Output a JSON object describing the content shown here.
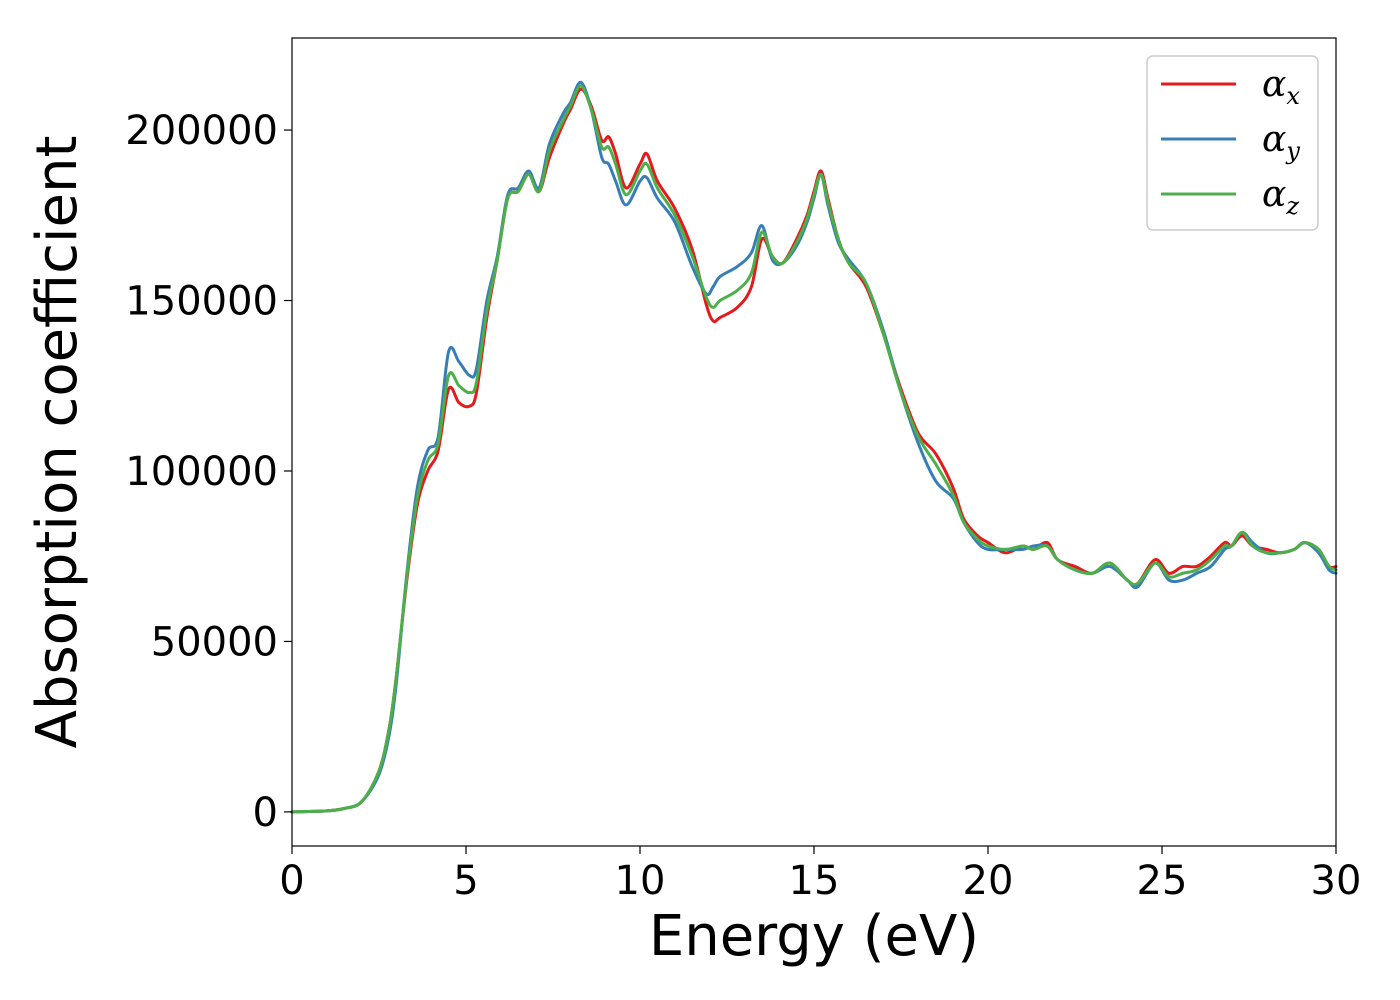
{
  "chart_data": {
    "type": "line",
    "title": "",
    "xlabel": "Energy (eV)",
    "ylabel": "Absorption coefficient",
    "xlim": [
      0,
      30
    ],
    "ylim": [
      -10000,
      227000
    ],
    "xticks": [
      0,
      5,
      10,
      15,
      20,
      25,
      30
    ],
    "xtick_labels": [
      "0",
      "5",
      "10",
      "15",
      "20",
      "25",
      "30"
    ],
    "yticks": [
      0,
      50000,
      100000,
      150000,
      200000
    ],
    "ytick_labels": [
      "0",
      "50000",
      "100000",
      "150000",
      "200000"
    ],
    "grid": false,
    "legend_position": "top-right",
    "series": [
      {
        "name": "α_x",
        "label_base": "α",
        "label_sub": "x",
        "color": "#e41a1c",
        "x": [
          0,
          1,
          1.5,
          2,
          2.5,
          2.8,
          3.0,
          3.3,
          3.6,
          3.9,
          4.2,
          4.5,
          4.8,
          5.1,
          5.3,
          5.6,
          5.9,
          6.2,
          6.5,
          6.8,
          7.1,
          7.4,
          7.8,
          8.0,
          8.3,
          8.6,
          8.9,
          9.1,
          9.3,
          9.6,
          10.0,
          10.2,
          10.5,
          11.0,
          11.5,
          11.9,
          12.1,
          12.3,
          12.8,
          13.2,
          13.5,
          13.8,
          14.1,
          14.5,
          14.8,
          15.0,
          15.2,
          15.4,
          15.7,
          16.0,
          16.5,
          17.0,
          17.5,
          18.0,
          18.5,
          19.0,
          19.3,
          19.7,
          20.0,
          20.5,
          21.0,
          21.3,
          21.7,
          22.0,
          22.5,
          23.0,
          23.5,
          24.0,
          24.3,
          24.8,
          25.2,
          25.6,
          26.0,
          26.4,
          26.8,
          27.0,
          27.3,
          27.6,
          28.0,
          28.4,
          28.8,
          29.1,
          29.5,
          29.8,
          30.0
        ],
        "y": [
          0,
          300,
          1000,
          3000,
          12000,
          25000,
          40000,
          68000,
          90000,
          100000,
          106000,
          124000,
          120000,
          119000,
          123000,
          145000,
          162000,
          180000,
          182000,
          187000,
          182000,
          192000,
          202000,
          206000,
          212000,
          207000,
          197000,
          198000,
          193000,
          183000,
          190000,
          193000,
          185000,
          177000,
          165000,
          149000,
          144000,
          145000,
          148000,
          154000,
          168000,
          163000,
          161000,
          168000,
          175000,
          182000,
          188000,
          180000,
          168000,
          161000,
          154000,
          140000,
          124000,
          111000,
          105000,
          95000,
          86000,
          81000,
          79000,
          76000,
          78000,
          77000,
          79000,
          74000,
          72000,
          70000,
          73000,
          68000,
          67000,
          74000,
          70000,
          72000,
          72000,
          75000,
          79000,
          78000,
          81000,
          78000,
          77000,
          76000,
          77000,
          79000,
          77000,
          72000,
          72000
        ]
      },
      {
        "name": "α_y",
        "label_base": "α",
        "label_sub": "y",
        "color": "#377eb8",
        "x": [
          0,
          1,
          1.5,
          2,
          2.5,
          2.8,
          3.0,
          3.3,
          3.6,
          3.9,
          4.2,
          4.5,
          4.8,
          5.1,
          5.3,
          5.6,
          5.9,
          6.2,
          6.5,
          6.8,
          7.1,
          7.4,
          7.8,
          8.0,
          8.3,
          8.6,
          8.9,
          9.1,
          9.3,
          9.6,
          10.0,
          10.2,
          10.5,
          11.0,
          11.5,
          11.9,
          12.1,
          12.3,
          12.8,
          13.2,
          13.5,
          13.8,
          14.1,
          14.5,
          14.8,
          15.0,
          15.2,
          15.4,
          15.7,
          16.0,
          16.5,
          17.0,
          17.5,
          18.0,
          18.5,
          19.0,
          19.3,
          19.7,
          20.0,
          20.5,
          21.0,
          21.3,
          21.7,
          22.0,
          22.5,
          23.0,
          23.5,
          24.0,
          24.3,
          24.8,
          25.2,
          25.6,
          26.0,
          26.4,
          26.8,
          27.0,
          27.3,
          27.6,
          28.0,
          28.4,
          28.8,
          29.1,
          29.5,
          29.8,
          30.0
        ],
        "y": [
          0,
          300,
          1000,
          3000,
          11000,
          23000,
          38000,
          70000,
          95000,
          106000,
          110000,
          135000,
          132000,
          128000,
          130000,
          150000,
          163000,
          181000,
          183000,
          188000,
          183000,
          196000,
          205000,
          208000,
          214000,
          206000,
          192000,
          190000,
          185000,
          178000,
          185000,
          186000,
          180000,
          173000,
          160000,
          152000,
          154000,
          157000,
          160000,
          164000,
          172000,
          162000,
          161000,
          166000,
          173000,
          180000,
          187000,
          178000,
          167000,
          162000,
          155000,
          141000,
          123000,
          108000,
          97000,
          92000,
          85000,
          79000,
          77000,
          77000,
          77000,
          78000,
          78000,
          74000,
          71000,
          70000,
          72000,
          68000,
          66000,
          73000,
          68000,
          68000,
          70000,
          72000,
          77000,
          78000,
          82000,
          79000,
          76000,
          76000,
          77000,
          79000,
          76000,
          71000,
          70000
        ]
      },
      {
        "name": "α_z",
        "label_base": "α",
        "label_sub": "z",
        "color": "#4daf4a",
        "x": [
          0,
          1,
          1.5,
          2,
          2.5,
          2.8,
          3.0,
          3.3,
          3.6,
          3.9,
          4.2,
          4.5,
          4.8,
          5.1,
          5.3,
          5.6,
          5.9,
          6.2,
          6.5,
          6.8,
          7.1,
          7.4,
          7.8,
          8.0,
          8.3,
          8.6,
          8.9,
          9.1,
          9.3,
          9.6,
          10.0,
          10.2,
          10.5,
          11.0,
          11.5,
          11.9,
          12.1,
          12.3,
          12.8,
          13.2,
          13.5,
          13.8,
          14.1,
          14.5,
          14.8,
          15.0,
          15.2,
          15.4,
          15.7,
          16.0,
          16.5,
          17.0,
          17.5,
          18.0,
          18.5,
          19.0,
          19.3,
          19.7,
          20.0,
          20.5,
          21.0,
          21.3,
          21.7,
          22.0,
          22.5,
          23.0,
          23.5,
          24.0,
          24.3,
          24.8,
          25.2,
          25.6,
          26.0,
          26.4,
          26.8,
          27.0,
          27.3,
          27.6,
          28.0,
          28.4,
          28.8,
          29.1,
          29.5,
          29.8,
          30.0
        ],
        "y": [
          0,
          300,
          1000,
          3000,
          12000,
          25000,
          40000,
          69000,
          92000,
          103000,
          108000,
          128000,
          125000,
          123000,
          126000,
          147000,
          162000,
          180000,
          182000,
          187000,
          182000,
          194000,
          203000,
          207000,
          213000,
          206000,
          195000,
          195000,
          190000,
          181000,
          188000,
          190000,
          183000,
          175000,
          163000,
          151000,
          148000,
          150000,
          153000,
          158000,
          170000,
          163000,
          161000,
          167000,
          174000,
          181000,
          187000,
          179000,
          168000,
          161000,
          155000,
          140000,
          123000,
          110000,
          102000,
          93000,
          85000,
          80000,
          78000,
          77000,
          78000,
          77000,
          78000,
          74000,
          71000,
          70000,
          73000,
          68000,
          67000,
          73000,
          69000,
          70000,
          71000,
          74000,
          78000,
          78000,
          82000,
          78000,
          76000,
          76000,
          77000,
          79000,
          77000,
          72000,
          71000
        ]
      }
    ]
  }
}
